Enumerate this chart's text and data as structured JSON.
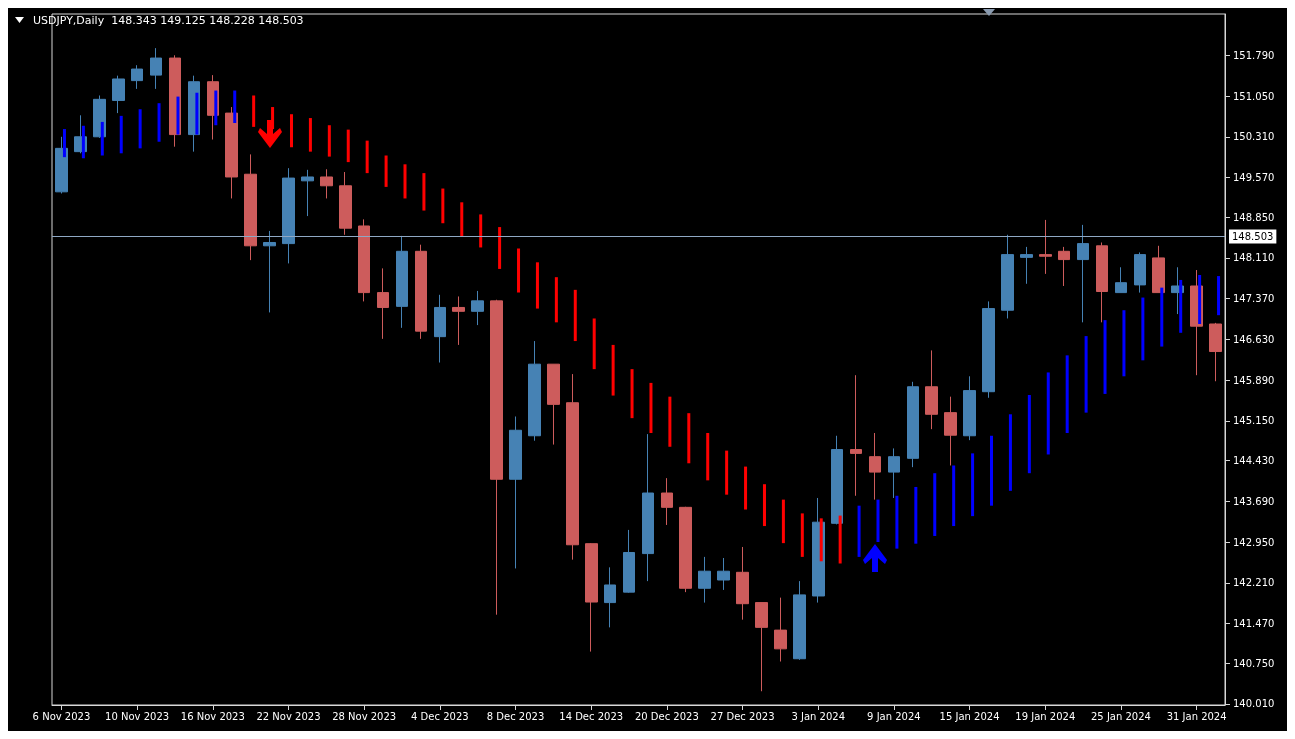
{
  "chart_data": {
    "type": "candlestick",
    "title": "USDJPY,Daily  148.343 149.125 148.228 148.503",
    "categories": [
      "6 Nov 2023",
      null,
      null,
      null,
      "10 Nov 2023",
      null,
      null,
      null,
      "16 Nov 2023",
      null,
      null,
      null,
      "22 Nov 2023",
      null,
      null,
      null,
      "28 Nov 2023",
      null,
      null,
      null,
      "4 Dec 2023",
      null,
      null,
      null,
      "8 Dec 2023",
      null,
      null,
      null,
      "14 Dec 2023",
      null,
      null,
      null,
      "20 Dec 2023",
      null,
      null,
      null,
      "27 Dec 2023",
      null,
      null,
      null,
      "3 Jan 2024",
      null,
      null,
      null,
      "9 Jan 2024",
      null,
      null,
      null,
      "15 Jan 2024",
      null,
      null,
      null,
      "19 Jan 2024",
      null,
      null,
      null,
      "25 Jan 2024",
      null,
      null,
      null,
      "31 Jan 2024",
      null
    ],
    "ylim": [
      139.99,
      152.54
    ],
    "yticks": [
      {
        "value": 140.01,
        "label": "140.010"
      },
      {
        "value": 140.75,
        "label": "140.750"
      },
      {
        "value": 141.47,
        "label": "141.470"
      },
      {
        "value": 142.21,
        "label": "142.210"
      },
      {
        "value": 142.95,
        "label": "142.950"
      },
      {
        "value": 143.69,
        "label": "143.690"
      },
      {
        "value": 144.43,
        "label": "144.430"
      },
      {
        "value": 145.15,
        "label": "145.150"
      },
      {
        "value": 145.89,
        "label": "145.890"
      },
      {
        "value": 146.63,
        "label": "146.630"
      },
      {
        "value": 147.37,
        "label": "147.370"
      },
      {
        "value": 148.11,
        "label": "148.110"
      },
      {
        "value": 148.85,
        "label": "148.850"
      },
      {
        "value": 149.57,
        "label": "149.570"
      },
      {
        "value": 150.31,
        "label": "150.310"
      },
      {
        "value": 151.05,
        "label": "151.050"
      },
      {
        "value": 151.79,
        "label": "151.790"
      }
    ],
    "series": [
      {
        "ohlc": [
          [
            149.31,
            150.31,
            149.28,
            150.1
          ],
          [
            150.04,
            150.7,
            150.01,
            150.31
          ],
          [
            150.31,
            151.06,
            150.29,
            150.99
          ],
          [
            150.97,
            151.42,
            150.74,
            151.36
          ],
          [
            151.33,
            151.61,
            151.18,
            151.54
          ],
          [
            151.43,
            151.92,
            151.18,
            151.74
          ],
          [
            151.74,
            151.79,
            150.13,
            150.35
          ],
          [
            150.35,
            151.42,
            150.04,
            151.31
          ],
          [
            151.31,
            151.43,
            150.26,
            150.7
          ],
          [
            150.74,
            150.85,
            149.19,
            149.58
          ],
          [
            149.63,
            149.99,
            148.07,
            148.33
          ],
          [
            148.33,
            148.6,
            147.12,
            148.39
          ],
          [
            148.37,
            149.74,
            148.01,
            149.56
          ],
          [
            149.51,
            149.71,
            148.87,
            149.58
          ],
          [
            149.58,
            149.72,
            149.19,
            149.42
          ],
          [
            149.42,
            149.67,
            148.53,
            148.65
          ],
          [
            148.69,
            148.81,
            147.32,
            147.48
          ],
          [
            147.48,
            147.92,
            146.64,
            147.21
          ],
          [
            147.23,
            148.51,
            146.84,
            148.23
          ],
          [
            148.23,
            148.35,
            146.64,
            146.78
          ],
          [
            146.68,
            147.44,
            146.21,
            147.21
          ],
          [
            147.21,
            147.41,
            146.53,
            147.14
          ],
          [
            147.14,
            147.51,
            146.89,
            147.33
          ],
          [
            147.33,
            147.35,
            141.63,
            144.09
          ],
          [
            144.09,
            145.23,
            142.47,
            144.98
          ],
          [
            144.88,
            146.6,
            144.79,
            146.18
          ],
          [
            146.18,
            146.18,
            144.72,
            145.45
          ],
          [
            145.48,
            146.0,
            142.63,
            142.9
          ],
          [
            142.92,
            142.93,
            140.96,
            141.86
          ],
          [
            141.85,
            142.49,
            141.4,
            142.17
          ],
          [
            142.04,
            143.17,
            142.03,
            142.76
          ],
          [
            142.74,
            144.91,
            142.24,
            143.84
          ],
          [
            143.84,
            144.11,
            143.26,
            143.58
          ],
          [
            143.58,
            143.59,
            142.04,
            142.11
          ],
          [
            142.11,
            142.68,
            141.85,
            142.42
          ],
          [
            142.26,
            142.66,
            142.08,
            142.42
          ],
          [
            142.4,
            142.86,
            141.54,
            141.83
          ],
          [
            141.85,
            141.85,
            140.24,
            141.4
          ],
          [
            141.35,
            141.94,
            140.78,
            141.01
          ],
          [
            140.83,
            142.24,
            140.81,
            141.99
          ],
          [
            141.97,
            143.75,
            141.85,
            143.31
          ],
          [
            143.29,
            144.88,
            143.27,
            144.63
          ],
          [
            144.63,
            145.98,
            143.79,
            144.56
          ],
          [
            144.5,
            144.93,
            143.72,
            144.22
          ],
          [
            144.22,
            144.65,
            143.75,
            144.5
          ],
          [
            144.47,
            145.86,
            144.31,
            145.77
          ],
          [
            145.77,
            146.43,
            145.0,
            145.27
          ],
          [
            145.3,
            145.59,
            144.34,
            144.89
          ],
          [
            144.88,
            145.96,
            144.8,
            145.7
          ],
          [
            145.68,
            147.32,
            145.57,
            147.19
          ],
          [
            147.16,
            148.53,
            147.01,
            148.17
          ],
          [
            148.12,
            148.31,
            147.64,
            148.17
          ],
          [
            148.17,
            148.8,
            147.82,
            148.14
          ],
          [
            148.23,
            148.31,
            147.6,
            148.08
          ],
          [
            148.08,
            148.71,
            146.94,
            148.37
          ],
          [
            148.33,
            148.39,
            146.94,
            147.5
          ],
          [
            147.48,
            147.94,
            147.48,
            147.66
          ],
          [
            147.62,
            148.21,
            147.48,
            148.17
          ],
          [
            148.11,
            148.33,
            147.48,
            147.48
          ],
          [
            147.48,
            147.94,
            147.09,
            147.6
          ],
          [
            147.6,
            147.89,
            145.98,
            146.87
          ],
          [
            146.91,
            146.93,
            145.87,
            146.41
          ]
        ],
        "colors": [
          "#4682b4",
          "#4682b4",
          "#4682b4",
          "#4682b4",
          "#4682b4",
          "#4682b4",
          "#cd5c5c",
          "#4682b4",
          "#cd5c5c",
          "#cd5c5c",
          "#cd5c5c",
          "#4682b4",
          "#4682b4",
          "#4682b4",
          "#cd5c5c",
          "#cd5c5c",
          "#cd5c5c",
          "#cd5c5c",
          "#4682b4",
          "#cd5c5c",
          "#4682b4",
          "#cd5c5c",
          "#4682b4",
          "#cd5c5c",
          "#4682b4",
          "#4682b4",
          "#cd5c5c",
          "#cd5c5c",
          "#cd5c5c",
          "#4682b4",
          "#4682b4",
          "#4682b4",
          "#cd5c5c",
          "#cd5c5c",
          "#4682b4",
          "#4682b4",
          "#cd5c5c",
          "#cd5c5c",
          "#cd5c5c",
          "#4682b4",
          "#4682b4",
          "#4682b4",
          "#cd5c5c",
          "#cd5c5c",
          "#4682b4",
          "#4682b4",
          "#cd5c5c",
          "#cd5c5c",
          "#4682b4",
          "#4682b4",
          "#4682b4",
          "#4682b4",
          "#cd5c5c",
          "#cd5c5c",
          "#4682b4",
          "#cd5c5c",
          "#4682b4",
          "#4682b4",
          "#cd5c5c",
          "#4682b4",
          "#cd5c5c",
          "#cd5c5c"
        ]
      },
      {
        "type": "bar",
        "color": "#ff0000",
        "base": [
          null,
          null,
          null,
          null,
          null,
          null,
          null,
          null,
          null,
          null,
          150.49,
          150.45,
          150.12,
          150.04,
          149.95,
          149.85,
          149.65,
          149.4,
          149.19,
          148.97,
          148.74,
          148.49,
          148.3,
          147.91,
          147.48,
          147.19,
          146.94,
          146.6,
          146.09,
          145.61,
          145.2,
          144.93,
          144.68,
          144.38,
          144.07,
          143.81,
          143.54,
          143.24,
          142.93,
          142.68,
          142.6,
          142.56,
          null,
          null,
          null,
          null,
          null,
          null,
          null,
          null,
          null,
          null,
          null,
          null,
          null,
          null,
          null,
          null,
          null,
          null,
          null,
          null
        ],
        "values": [
          null,
          null,
          null,
          null,
          null,
          null,
          null,
          null,
          null,
          null,
          0.57,
          0.4,
          0.6,
          0.61,
          0.57,
          0.59,
          0.59,
          0.57,
          0.62,
          0.68,
          0.63,
          0.63,
          0.6,
          0.76,
          0.8,
          0.84,
          0.82,
          0.93,
          0.92,
          0.92,
          0.89,
          0.91,
          0.91,
          0.91,
          0.86,
          0.8,
          0.78,
          0.76,
          0.79,
          0.79,
          0.78,
          0.87,
          null,
          null,
          null,
          null,
          null,
          null,
          null,
          null,
          null,
          null,
          null,
          null,
          null,
          null,
          null,
          null,
          null,
          null,
          null,
          null
        ]
      },
      {
        "type": "bar",
        "color": "#0000ff",
        "base": [
          149.94,
          149.92,
          149.97,
          150.01,
          150.1,
          150.22,
          150.35,
          150.35,
          150.52,
          150.56,
          null,
          null,
          null,
          null,
          null,
          null,
          null,
          null,
          null,
          null,
          null,
          null,
          null,
          null,
          null,
          null,
          null,
          null,
          null,
          null,
          null,
          null,
          null,
          null,
          null,
          null,
          null,
          null,
          null,
          null,
          null,
          null,
          142.68,
          142.95,
          142.83,
          142.92,
          143.06,
          143.24,
          143.42,
          143.61,
          143.88,
          144.2,
          144.54,
          144.93,
          145.3,
          145.64,
          145.96,
          146.25,
          146.5,
          146.75,
          146.91,
          147.07
        ],
        "values": [
          0.51,
          0.59,
          0.61,
          0.68,
          0.71,
          0.7,
          0.69,
          0.76,
          0.63,
          0.59,
          null,
          null,
          null,
          null,
          null,
          null,
          null,
          null,
          null,
          null,
          null,
          null,
          null,
          null,
          null,
          null,
          null,
          null,
          null,
          null,
          null,
          null,
          null,
          null,
          null,
          null,
          null,
          null,
          null,
          null,
          null,
          null,
          0.93,
          0.77,
          0.96,
          1.03,
          1.14,
          1.1,
          1.14,
          1.27,
          1.39,
          1.42,
          1.49,
          1.41,
          1.39,
          1.34,
          1.2,
          1.14,
          1.07,
          0.96,
          0.89,
          0.71
        ]
      }
    ],
    "ref_lines": [
      {
        "axis": "y",
        "value": 148.503,
        "label": "148.503",
        "color": "#8fa8c4"
      }
    ],
    "grid": false
  }
}
